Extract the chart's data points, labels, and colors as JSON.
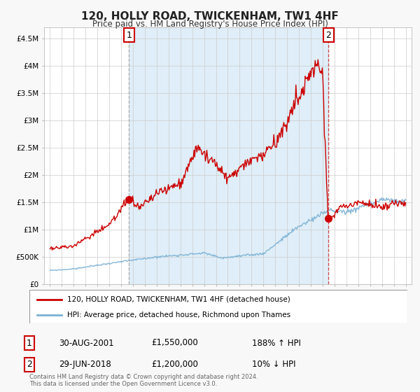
{
  "title": "120, HOLLY ROAD, TWICKENHAM, TW1 4HF",
  "subtitle": "Price paid vs. HM Land Registry's House Price Index (HPI)",
  "footer": "Contains HM Land Registry data © Crown copyright and database right 2024.\nThis data is licensed under the Open Government Licence v3.0.",
  "legend_line1": "120, HOLLY ROAD, TWICKENHAM, TW1 4HF (detached house)",
  "legend_line2": "HPI: Average price, detached house, Richmond upon Thames",
  "sale1_date": "30-AUG-2001",
  "sale1_price": "£1,550,000",
  "sale1_hpi": "188% ↑ HPI",
  "sale2_date": "29-JUN-2018",
  "sale2_price": "£1,200,000",
  "sale2_hpi": "10% ↓ HPI",
  "bg_color": "#f8f8f8",
  "plot_bg": "#ffffff",
  "red_color": "#cc0000",
  "blue_color": "#7ab0d4",
  "vline1_x": 2001.67,
  "vline2_x": 2018.5,
  "marker1_x": 2001.67,
  "marker1_y": 1550000,
  "marker2_x": 2018.5,
  "marker2_y": 1200000,
  "ylim_min": 0,
  "ylim_max": 4700000,
  "xlim_min": 1994.5,
  "xlim_max": 2025.5,
  "yticks": [
    0,
    500000,
    1000000,
    1500000,
    2000000,
    2500000,
    3000000,
    3500000,
    4000000,
    4500000
  ],
  "ytick_labels": [
    "£0",
    "£500K",
    "£1M",
    "£1.5M",
    "£2M",
    "£2.5M",
    "£3M",
    "£3.5M",
    "£4M",
    "£4.5M"
  ],
  "xticks": [
    1995,
    1996,
    1997,
    1998,
    1999,
    2000,
    2001,
    2002,
    2003,
    2004,
    2005,
    2006,
    2007,
    2008,
    2009,
    2010,
    2011,
    2012,
    2013,
    2014,
    2015,
    2016,
    2017,
    2018,
    2019,
    2020,
    2021,
    2022,
    2023,
    2024,
    2025
  ]
}
